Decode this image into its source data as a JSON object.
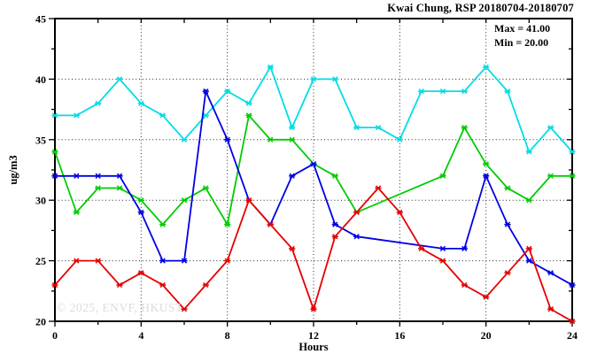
{
  "header": {
    "title": "Kwai Chung, RSP 20180704-20180707"
  },
  "legend": {
    "max_label": "Max = 41.00",
    "min_label": "Min = 20.00"
  },
  "watermark": "© 2025, ENVF, HKUST",
  "chart_data": {
    "type": "line",
    "title": "Kwai Chung, RSP 20180704-20180707",
    "xlabel": "Hours",
    "ylabel": "ug/m3",
    "xlim": [
      0,
      24
    ],
    "ylim": [
      20,
      45
    ],
    "xticks": [
      0,
      4,
      8,
      12,
      16,
      20,
      24
    ],
    "yticks": [
      20,
      25,
      30,
      35,
      40,
      45
    ],
    "x_minor_step": 2,
    "y_minor_step": 2.5,
    "grid_x": [
      4,
      8,
      12,
      16,
      20
    ],
    "grid_y": [
      25,
      30,
      35,
      40
    ],
    "grid_style": "dotted",
    "legend_position": "top-right-inside",
    "annotations": [
      "Max = 41.00",
      "Min = 20.00"
    ],
    "x": [
      0,
      1,
      2,
      3,
      4,
      5,
      6,
      7,
      8,
      9,
      10,
      11,
      12,
      13,
      14,
      15,
      16,
      17,
      18,
      19,
      20,
      21,
      22,
      23,
      24
    ],
    "series": [
      {
        "name": "cyan-series",
        "color": "#00DDE6",
        "values": [
          37,
          37,
          38,
          40,
          38,
          37,
          35,
          37,
          39,
          38,
          41,
          36,
          40,
          40,
          36,
          36,
          35,
          39,
          39,
          39,
          41,
          39,
          34,
          36,
          34
        ]
      },
      {
        "name": "green-series",
        "color": "#00CC00",
        "values": [
          34,
          29,
          31,
          31,
          30,
          28,
          30,
          31,
          28,
          37,
          35,
          35,
          33,
          32,
          29,
          null,
          null,
          null,
          32,
          36,
          33,
          31,
          30,
          32,
          32
        ]
      },
      {
        "name": "blue-series",
        "color": "#0000E6",
        "values": [
          32,
          32,
          32,
          32,
          29,
          25,
          25,
          39,
          35,
          30,
          28,
          32,
          33,
          28,
          27,
          null,
          null,
          null,
          26,
          26,
          32,
          28,
          25,
          24,
          23
        ]
      },
      {
        "name": "red-series",
        "color": "#E60000",
        "values": [
          23,
          25,
          25,
          23,
          24,
          23,
          21,
          23,
          25,
          30,
          28,
          26,
          21,
          27,
          29,
          31,
          29,
          26,
          25,
          23,
          22,
          24,
          26,
          21,
          20
        ]
      }
    ]
  }
}
